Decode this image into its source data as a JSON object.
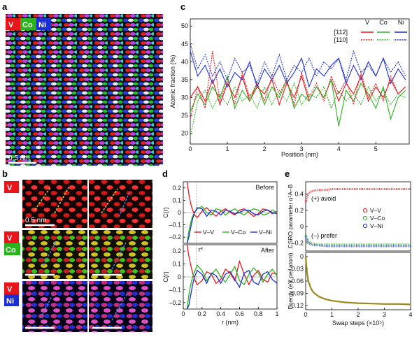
{
  "panels": {
    "a": "a",
    "b": "b",
    "c": "c",
    "d": "d",
    "e": "e"
  },
  "element_labels": {
    "v": "V",
    "co": "Co",
    "ni": "Ni"
  },
  "colors": {
    "v": "#e8161b",
    "co": "#2bb31e",
    "ni": "#1c2fd6",
    "gold": "#9a8a1e",
    "scale_line": "#4a7fd0",
    "scale_line2": "#e0d040"
  },
  "panel_a": {
    "scale_label": "0.5 nm"
  },
  "panel_b": {
    "scale_label": "0.5 nm"
  },
  "chart_data": [
    {
      "id": "c",
      "type": "line",
      "xlabel": "Position (nm)",
      "ylabel": "Atomic fraction (%)",
      "xlim": [
        0,
        5.9
      ],
      "ylim": [
        17,
        52
      ],
      "xticks": [
        0,
        1,
        2,
        3,
        4,
        5
      ],
      "yticks": [
        20,
        25,
        30,
        35,
        40,
        45,
        50
      ],
      "legend": {
        "rows": [
          "[112]",
          "[110]"
        ],
        "columns": [
          "V",
          "Co",
          "Ni"
        ]
      },
      "series": [
        {
          "element": "V",
          "direction": "[112]",
          "style": "solid",
          "color": "#e8161b",
          "x": [
            0,
            0.2,
            0.4,
            0.6,
            0.8,
            1.0,
            1.2,
            1.4,
            1.6,
            1.8,
            2.0,
            2.2,
            2.4,
            2.6,
            2.8,
            3.0,
            3.2,
            3.4,
            3.6,
            3.8,
            4.0,
            4.2,
            4.4,
            4.6,
            4.8,
            5.0,
            5.2,
            5.4,
            5.6,
            5.8
          ],
          "y": [
            30,
            33,
            29,
            35,
            28,
            34,
            30,
            36,
            29,
            33,
            31,
            35,
            28,
            34,
            30,
            36,
            29,
            33,
            30,
            35,
            29,
            34,
            31,
            36,
            29,
            33,
            30,
            35,
            31,
            33
          ]
        },
        {
          "element": "Co",
          "direction": "[112]",
          "style": "solid",
          "color": "#2bb31e",
          "x": [
            0,
            0.2,
            0.4,
            0.6,
            0.8,
            1.0,
            1.2,
            1.4,
            1.6,
            1.8,
            2.0,
            2.2,
            2.4,
            2.6,
            2.8,
            3.0,
            3.2,
            3.4,
            3.6,
            3.8,
            4.0,
            4.2,
            4.4,
            4.6,
            4.8,
            5.0,
            5.2,
            5.4,
            5.6,
            5.8
          ],
          "y": [
            26,
            31,
            28,
            33,
            30,
            36,
            27,
            32,
            29,
            34,
            28,
            33,
            30,
            35,
            27,
            31,
            29,
            33,
            30,
            35,
            22,
            32,
            29,
            34,
            31,
            27,
            33,
            24,
            30,
            32
          ]
        },
        {
          "element": "Ni",
          "direction": "[112]",
          "style": "solid",
          "color": "#1c2fd6",
          "x": [
            0,
            0.2,
            0.4,
            0.6,
            0.8,
            1.0,
            1.2,
            1.4,
            1.6,
            1.8,
            2.0,
            2.2,
            2.4,
            2.6,
            2.8,
            3.0,
            3.2,
            3.4,
            3.6,
            3.8,
            4.0,
            4.2,
            4.4,
            4.6,
            4.8,
            5.0,
            5.2,
            5.4,
            5.6,
            5.8
          ],
          "y": [
            43,
            36,
            39,
            34,
            38,
            33,
            37,
            35,
            40,
            33,
            38,
            35,
            39,
            34,
            37,
            41,
            33,
            38,
            36,
            39,
            41,
            34,
            39,
            35,
            40,
            36,
            41,
            34,
            38,
            35
          ]
        },
        {
          "element": "V",
          "direction": "[110]",
          "style": "dashed",
          "color": "#e8161b",
          "x": [
            0,
            0.2,
            0.4,
            0.6,
            0.8,
            1.0,
            1.2,
            1.4,
            1.6,
            1.8,
            2.0,
            2.2,
            2.4,
            2.6,
            2.8,
            3.0,
            3.2,
            3.4,
            3.6,
            3.8,
            4.0,
            4.2,
            4.4,
            4.6,
            4.8,
            5.0,
            5.2,
            5.4,
            5.6,
            5.8
          ],
          "y": [
            24,
            33,
            27,
            43,
            29,
            35,
            28,
            37,
            30,
            34,
            29,
            36,
            31,
            35,
            28,
            37,
            30,
            34,
            29,
            36,
            31,
            35,
            28,
            37,
            30,
            34,
            29,
            36,
            31,
            33
          ]
        },
        {
          "element": "Co",
          "direction": "[110]",
          "style": "dashed",
          "color": "#2bb31e",
          "x": [
            0,
            0.2,
            0.4,
            0.6,
            0.8,
            1.0,
            1.2,
            1.4,
            1.6,
            1.8,
            2.0,
            2.2,
            2.4,
            2.6,
            2.8,
            3.0,
            3.2,
            3.4,
            3.6,
            3.8,
            4.0,
            4.2,
            4.4,
            4.6,
            4.8,
            5.0,
            5.2,
            5.4,
            5.6,
            5.8
          ],
          "y": [
            19,
            29,
            32,
            27,
            31,
            28,
            33,
            29,
            31,
            27,
            33,
            28,
            32,
            29,
            34,
            28,
            31,
            30,
            33,
            27,
            32,
            29,
            31,
            28,
            33,
            29,
            32,
            28,
            31,
            30
          ]
        },
        {
          "element": "Ni",
          "direction": "[110]",
          "style": "dashed",
          "color": "#1c2fd6",
          "x": [
            0,
            0.2,
            0.4,
            0.6,
            0.8,
            1.0,
            1.2,
            1.4,
            1.6,
            1.8,
            2.0,
            2.2,
            2.4,
            2.6,
            2.8,
            3.0,
            3.2,
            3.4,
            3.6,
            3.8,
            4.0,
            4.2,
            4.4,
            4.6,
            4.8,
            5.0,
            5.2,
            5.4,
            5.6,
            5.8
          ],
          "y": [
            45,
            38,
            42,
            36,
            40,
            35,
            41,
            37,
            39,
            34,
            40,
            36,
            42,
            35,
            39,
            37,
            41,
            36,
            40,
            38,
            41,
            35,
            43,
            37,
            39,
            36,
            41,
            37,
            40,
            36
          ]
        }
      ]
    },
    {
      "id": "d-before",
      "type": "line",
      "title": "Before",
      "xlabel": "",
      "ylabel": "C(r)",
      "xlim": [
        0,
        1.0
      ],
      "ylim": [
        -0.25,
        0.25
      ],
      "xticks": [
        0,
        0.2,
        0.4,
        0.6,
        0.8,
        1.0
      ],
      "yticks": [
        -0.2,
        -0.1,
        0,
        0.1,
        0.2
      ],
      "legend": [
        "V–V",
        "V–Co",
        "V–Ni"
      ],
      "series": [
        {
          "name": "V–V",
          "color": "#e8161b",
          "x": [
            0.04,
            0.06,
            0.08,
            0.1,
            0.12,
            0.15,
            0.2,
            0.25,
            0.3,
            0.35,
            0.4,
            0.45,
            0.5,
            0.55,
            0.6,
            0.65,
            0.7,
            0.75,
            0.8,
            0.85,
            0.9,
            0.95,
            1.0
          ],
          "y": [
            0.25,
            0.15,
            0.07,
            0.02,
            -0.02,
            -0.04,
            0.01,
            0.04,
            0.0,
            -0.03,
            0.01,
            0.03,
            0.0,
            -0.02,
            0.02,
            0.03,
            0.0,
            -0.03,
            -0.01,
            0.03,
            0.02,
            -0.01,
            0.01
          ]
        },
        {
          "name": "V–Co",
          "color": "#2bb31e",
          "x": [
            0.04,
            0.06,
            0.08,
            0.1,
            0.12,
            0.15,
            0.2,
            0.25,
            0.3,
            0.35,
            0.4,
            0.45,
            0.5,
            0.55,
            0.6,
            0.65,
            0.7,
            0.75,
            0.8,
            0.85,
            0.9,
            0.95,
            1.0
          ],
          "y": [
            -0.25,
            -0.15,
            -0.08,
            -0.03,
            0.0,
            0.03,
            0.05,
            0.0,
            -0.02,
            0.03,
            0.02,
            -0.02,
            0.01,
            0.03,
            0.0,
            -0.02,
            0.01,
            0.03,
            0.02,
            -0.02,
            -0.01,
            0.02,
            0.0
          ]
        },
        {
          "name": "V–Ni",
          "color": "#1c2fd6",
          "x": [
            0.04,
            0.06,
            0.08,
            0.1,
            0.12,
            0.15,
            0.2,
            0.25,
            0.3,
            0.35,
            0.4,
            0.45,
            0.5,
            0.55,
            0.6,
            0.65,
            0.7,
            0.75,
            0.8,
            0.85,
            0.9,
            0.95,
            1.0
          ],
          "y": [
            -0.25,
            -0.2,
            -0.12,
            -0.05,
            0.0,
            0.04,
            0.03,
            -0.03,
            0.02,
            0.01,
            -0.02,
            0.02,
            0.01,
            -0.01,
            0.0,
            0.02,
            0.02,
            -0.01,
            -0.02,
            0.01,
            0.02,
            0.0,
            -0.01
          ]
        }
      ]
    },
    {
      "id": "d-after",
      "type": "line",
      "title": "After",
      "annotation": "r*",
      "xlabel": "r (nm)",
      "ylabel": "C(r)",
      "xlim": [
        0,
        1.0
      ],
      "ylim": [
        -0.25,
        0.25
      ],
      "xticks": [
        0,
        0.2,
        0.4,
        0.6,
        0.8,
        1.0
      ],
      "yticks": [
        -0.2,
        -0.1,
        0,
        0.1,
        0.2
      ],
      "series": [
        {
          "name": "V–V",
          "color": "#e8161b",
          "x": [
            0.04,
            0.06,
            0.08,
            0.1,
            0.12,
            0.15,
            0.2,
            0.25,
            0.3,
            0.35,
            0.4,
            0.45,
            0.5,
            0.55,
            0.6,
            0.65,
            0.7,
            0.75,
            0.8,
            0.85,
            0.9,
            0.95,
            1.0
          ],
          "y": [
            0.25,
            0.16,
            0.09,
            0.03,
            -0.02,
            -0.06,
            -0.03,
            0.04,
            0.02,
            -0.05,
            -0.02,
            0.06,
            0.03,
            -0.03,
            0.12,
            0.02,
            -0.06,
            0.01,
            0.05,
            -0.02,
            -0.04,
            0.03,
            0.02
          ]
        },
        {
          "name": "V–Co",
          "color": "#2bb31e",
          "x": [
            0.04,
            0.06,
            0.08,
            0.1,
            0.12,
            0.15,
            0.2,
            0.25,
            0.3,
            0.35,
            0.4,
            0.45,
            0.5,
            0.55,
            0.6,
            0.65,
            0.7,
            0.75,
            0.8,
            0.85,
            0.9,
            0.95,
            1.0
          ],
          "y": [
            -0.25,
            -0.14,
            -0.06,
            0.0,
            0.04,
            0.09,
            0.05,
            -0.03,
            0.02,
            0.06,
            0.0,
            -0.04,
            0.02,
            0.08,
            -0.03,
            -0.06,
            0.02,
            0.07,
            0.03,
            -0.04,
            0.02,
            0.06,
            0.01
          ]
        },
        {
          "name": "V–Ni",
          "color": "#1c2fd6",
          "x": [
            0.04,
            0.06,
            0.08,
            0.1,
            0.12,
            0.15,
            0.2,
            0.25,
            0.3,
            0.35,
            0.4,
            0.45,
            0.5,
            0.55,
            0.6,
            0.65,
            0.7,
            0.75,
            0.8,
            0.85,
            0.9,
            0.95,
            1.0
          ],
          "y": [
            -0.25,
            -0.22,
            -0.14,
            -0.06,
            0.0,
            0.05,
            0.02,
            -0.05,
            0.03,
            0.01,
            -0.05,
            0.02,
            0.04,
            -0.02,
            -0.08,
            0.03,
            0.05,
            -0.04,
            -0.06,
            0.02,
            0.04,
            -0.02,
            -0.05
          ]
        }
      ]
    },
    {
      "id": "e-top",
      "type": "scatter",
      "ylabel": "CSRO parameter α¹A–B",
      "xlim": [
        0,
        4
      ],
      "ylim": [
        -0.3,
        0.55
      ],
      "yticks": [
        -0.2,
        0.0,
        0.2,
        0.4
      ],
      "annotations": [
        "(+) avoid",
        "(–) prefer"
      ],
      "legend": [
        "V–V",
        "V–Co",
        "V–Ni"
      ],
      "series": [
        {
          "name": "V–V",
          "color": "#e8161b",
          "x": [
            0,
            0.05,
            0.1,
            0.2,
            0.3,
            0.5,
            0.8,
            1.0,
            1.5,
            2.0,
            2.5,
            3.0,
            3.5,
            4.0
          ],
          "y": [
            0.3,
            0.36,
            0.4,
            0.43,
            0.44,
            0.45,
            0.45,
            0.46,
            0.46,
            0.46,
            0.46,
            0.46,
            0.46,
            0.46
          ]
        },
        {
          "name": "V–Co",
          "color": "#2bb31e",
          "x": [
            0,
            0.05,
            0.1,
            0.2,
            0.3,
            0.5,
            0.8,
            1.0,
            1.5,
            2.0,
            2.5,
            3.0,
            3.5,
            4.0
          ],
          "y": [
            -0.1,
            -0.15,
            -0.18,
            -0.2,
            -0.21,
            -0.22,
            -0.22,
            -0.22,
            -0.22,
            -0.22,
            -0.22,
            -0.22,
            -0.22,
            -0.22
          ]
        },
        {
          "name": "V–Ni",
          "color": "#1c2fd6",
          "x": [
            0,
            0.05,
            0.1,
            0.2,
            0.3,
            0.5,
            0.8,
            1.0,
            1.5,
            2.0,
            2.5,
            3.0,
            3.5,
            4.0
          ],
          "y": [
            -0.12,
            -0.17,
            -0.2,
            -0.22,
            -0.23,
            -0.23,
            -0.24,
            -0.24,
            -0.24,
            -0.24,
            -0.24,
            -0.24,
            -0.24,
            -0.24
          ]
        }
      ]
    },
    {
      "id": "e-bottom",
      "type": "scatter",
      "xlabel": "Swap steps (×10⁵)",
      "ylabel": "Energy (eV per atom)",
      "xlim": [
        0,
        4
      ],
      "ylim": [
        -0.13,
        0.01
      ],
      "xticks": [
        0,
        1,
        2,
        3,
        4
      ],
      "yticks": [
        0.0,
        -0.03,
        -0.06,
        -0.09,
        -0.12
      ],
      "series": [
        {
          "name": "Energy",
          "color": "#9a8a1e",
          "x": [
            0,
            0.05,
            0.1,
            0.2,
            0.3,
            0.5,
            0.75,
            1.0,
            1.5,
            2.0,
            2.5,
            3.0,
            3.5,
            4.0
          ],
          "y": [
            0.0,
            -0.04,
            -0.06,
            -0.078,
            -0.088,
            -0.098,
            -0.104,
            -0.108,
            -0.112,
            -0.114,
            -0.115,
            -0.116,
            -0.116,
            -0.117
          ]
        }
      ]
    }
  ]
}
